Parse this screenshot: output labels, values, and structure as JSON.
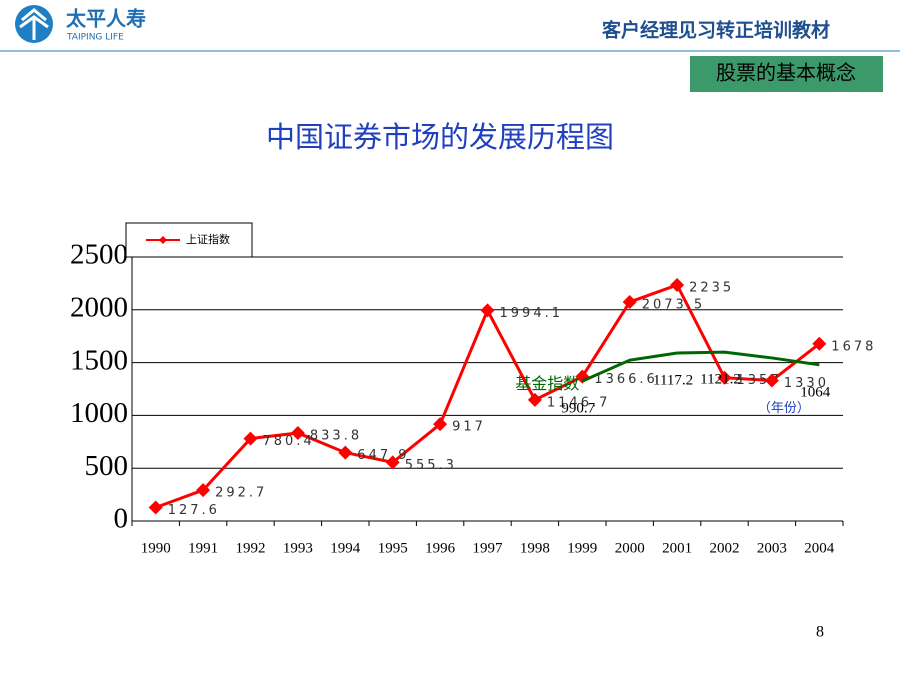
{
  "header": {
    "logo_cn": "太平人寿",
    "logo_en": "TAIPING LIFE",
    "course": "客户经理见习转正培训教材",
    "section": "股票的基本概念"
  },
  "page_number": "8",
  "chart_data": {
    "type": "line",
    "title": "中国证券市场的发展历程图",
    "categories": [
      "1990",
      "1991",
      "1992",
      "1993",
      "1994",
      "1995",
      "1996",
      "1997",
      "1998",
      "1999",
      "2000",
      "2001",
      "2002",
      "2003",
      "2004"
    ],
    "series": [
      {
        "name": "上证指数",
        "color": "#ff0000",
        "values": [
          127.6,
          292.7,
          780.4,
          833.8,
          647.9,
          555.3,
          917,
          1994.1,
          1146.7,
          1366.6,
          2073.5,
          2235,
          1357,
          1330,
          1678
        ]
      },
      {
        "name": "基金指数",
        "color": "#006600",
        "axis": "y2",
        "values": [
          null,
          null,
          null,
          null,
          null,
          null,
          null,
          null,
          null,
          990.7,
          1085,
          1117.2,
          1121.2,
          1095,
          1064
        ],
        "value_labels": [
          null,
          null,
          null,
          null,
          null,
          null,
          null,
          null,
          null,
          "990.7",
          null,
          "1117.2",
          "1121.2",
          null,
          "1064"
        ]
      }
    ],
    "ylim": [
      0,
      2500
    ],
    "yticks": [
      0,
      500,
      1000,
      1500,
      2000,
      2500
    ],
    "y2lim": [
      360,
      1550
    ],
    "grid": true,
    "legend": "top-left",
    "annotations": [
      "（年份）"
    ]
  }
}
